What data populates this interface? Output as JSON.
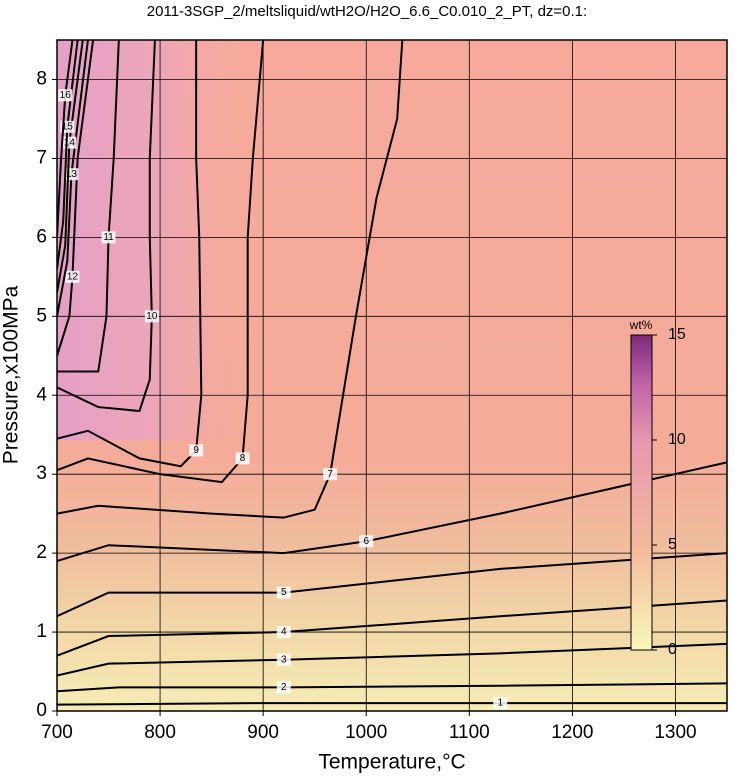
{
  "chart_data": {
    "type": "contour",
    "title": "2011-3SGP_2/meltsliquid/wtH2O/H2O_6.6_C0.010_2_PT, dz=0.1:",
    "x_label": "Temperature,°C",
    "y_label": "Pressure,x100MPa",
    "xlim": [
      700,
      1350
    ],
    "ylim": [
      0,
      8.5
    ],
    "xticks": [
      700,
      800,
      900,
      1000,
      1100,
      1200,
      1300
    ],
    "yticks": [
      0,
      1,
      2,
      3,
      4,
      5,
      6,
      7,
      8
    ],
    "grid": true,
    "contours": [
      {
        "level": 1,
        "x": [
          700,
          900,
          1130,
          1350
        ],
        "y": [
          0.08,
          0.1,
          0.1,
          0.1
        ]
      },
      {
        "level": 2,
        "x": [
          700,
          760,
          920,
          1130,
          1350
        ],
        "y": [
          0.25,
          0.3,
          0.3,
          0.32,
          0.35
        ]
      },
      {
        "level": 3,
        "x": [
          700,
          750,
          920,
          1130,
          1350
        ],
        "y": [
          0.45,
          0.6,
          0.65,
          0.73,
          0.85
        ]
      },
      {
        "level": 4,
        "x": [
          700,
          750,
          920,
          1130,
          1350
        ],
        "y": [
          0.7,
          0.95,
          1.0,
          1.2,
          1.4
        ]
      },
      {
        "level": 5,
        "x": [
          700,
          750,
          920,
          1130,
          1350
        ],
        "y": [
          1.2,
          1.5,
          1.5,
          1.8,
          2.0
        ]
      },
      {
        "level": 6,
        "x": [
          700,
          750,
          920,
          1000,
          1130,
          1350
        ],
        "y": [
          1.9,
          2.1,
          2.0,
          2.15,
          2.5,
          3.15
        ]
      },
      {
        "level": 7,
        "x": [
          700,
          740,
          850,
          920,
          950,
          965,
          990,
          1010,
          1030,
          1035
        ],
        "y": [
          2.5,
          2.6,
          2.5,
          2.45,
          2.55,
          3.0,
          5.0,
          6.5,
          7.5,
          8.5
        ]
      },
      {
        "level": 8,
        "x": [
          700,
          730,
          800,
          860,
          880,
          885,
          885,
          890,
          900
        ],
        "y": [
          3.05,
          3.2,
          3.0,
          2.9,
          3.2,
          4.0,
          6.0,
          7.0,
          8.5
        ]
      },
      {
        "level": 9,
        "x": [
          700,
          730,
          780,
          820,
          835,
          840,
          838,
          835,
          835
        ],
        "y": [
          3.45,
          3.55,
          3.2,
          3.1,
          3.3,
          4.0,
          6.0,
          7.0,
          8.5
        ]
      },
      {
        "level": 10,
        "x": [
          700,
          740,
          780,
          790,
          792,
          790,
          790,
          795
        ],
        "y": [
          4.1,
          3.85,
          3.8,
          4.2,
          5.0,
          6.0,
          7.0,
          8.5
        ]
      },
      {
        "level": 11,
        "x": [
          700,
          740,
          748,
          750,
          755,
          760
        ],
        "y": [
          4.3,
          4.3,
          5.0,
          6.0,
          7.0,
          8.5
        ]
      },
      {
        "level": 12,
        "x": [
          700,
          712,
          715,
          720,
          735
        ],
        "y": [
          4.5,
          5.0,
          5.5,
          7.0,
          8.5
        ]
      },
      {
        "level": 13,
        "x": [
          700,
          710,
          714,
          730
        ],
        "y": [
          5.0,
          5.7,
          6.8,
          8.5
        ]
      },
      {
        "level": 14,
        "x": [
          700,
          708,
          712,
          725
        ],
        "y": [
          5.3,
          5.9,
          7.2,
          8.5
        ]
      },
      {
        "level": 15,
        "x": [
          700,
          706,
          710,
          720
        ],
        "y": [
          5.6,
          6.2,
          7.4,
          8.5
        ]
      },
      {
        "level": 16,
        "x": [
          700,
          704,
          708,
          715
        ],
        "y": [
          6.0,
          7.0,
          7.8,
          8.5
        ]
      }
    ],
    "colorbar": {
      "label": "wt%",
      "lim": [
        0,
        15
      ],
      "ticks": [
        0,
        5,
        10,
        15
      ]
    }
  }
}
